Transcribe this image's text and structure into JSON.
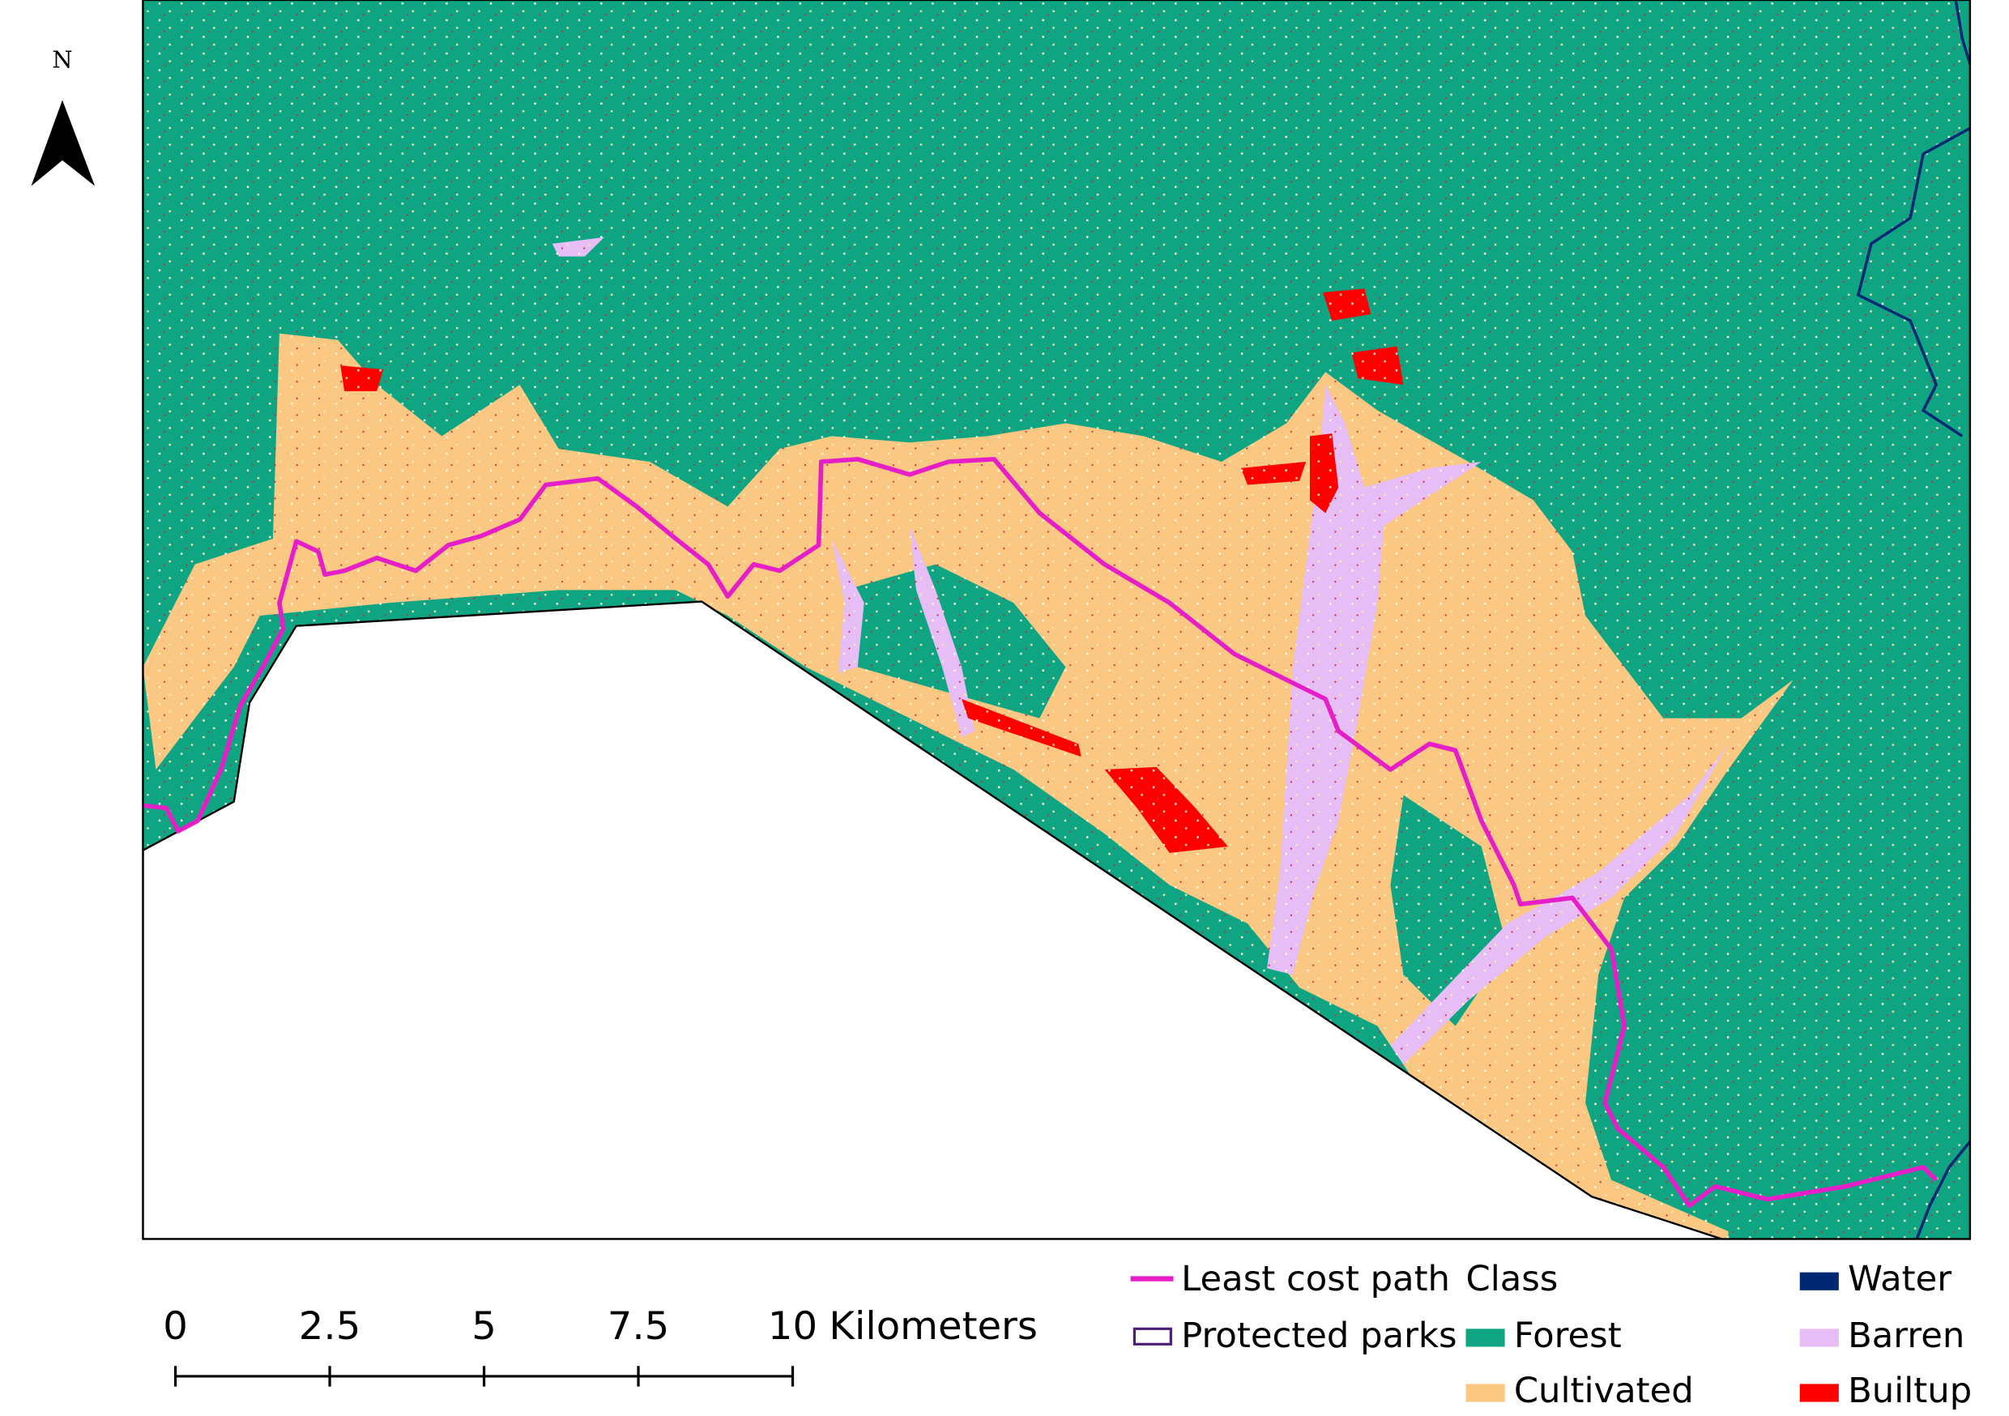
{
  "map": {
    "north_label": "N",
    "scale_bar": {
      "ticks": [
        0,
        2.5,
        5,
        7.5,
        10
      ],
      "unit": "Kilometers"
    },
    "legend": {
      "path": {
        "label": "Least cost path",
        "color": "#e61ec8"
      },
      "parks": {
        "label": "Protected parks",
        "color": "#4b1e78"
      },
      "title": "Class",
      "classes": [
        {
          "label": "Forest",
          "color": "#0fa582"
        },
        {
          "label": "Cultivated",
          "color": "#fac882"
        },
        {
          "label": "Water",
          "color": "#002873"
        },
        {
          "label": "Barren",
          "color": "#e6beF5"
        },
        {
          "label": "Builtup",
          "color": "#ff0000"
        }
      ]
    }
  }
}
